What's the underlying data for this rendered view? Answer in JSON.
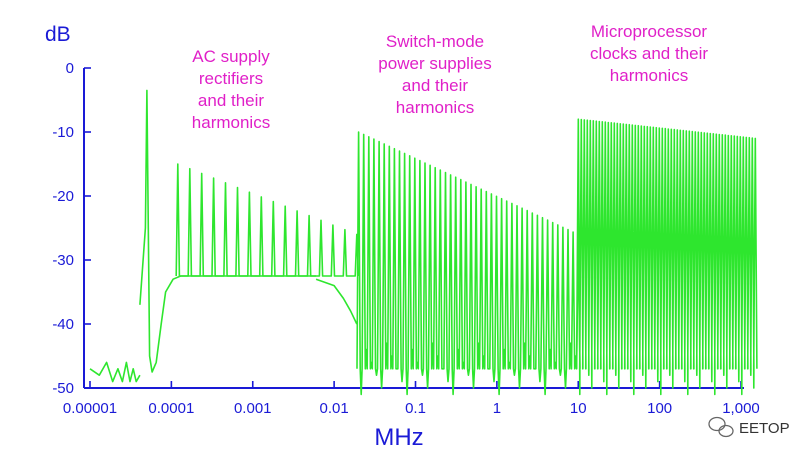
{
  "chart_data": {
    "type": "line",
    "title": "",
    "xlabel": "MHz",
    "ylabel": "dB",
    "xscale": "log",
    "xlim": [
      1e-05,
      1500
    ],
    "ylim": [
      -50,
      0
    ],
    "x_ticks": [
      1e-05,
      0.0001,
      0.001,
      0.01,
      0.1,
      1,
      10,
      100,
      1000
    ],
    "x_tick_labels": [
      "0.00001",
      "0.0001",
      "0.001",
      "0.01",
      "0.1",
      "1",
      "10",
      "100",
      "1,000"
    ],
    "y_ticks": [
      0,
      -10,
      -20,
      -30,
      -40,
      -50
    ],
    "y_tick_labels": [
      "0",
      "-10",
      "-20",
      "-30",
      "-40",
      "-50"
    ],
    "grid": false,
    "annotations": [
      {
        "id": "ac",
        "lines": [
          "AC supply",
          "rectifiers",
          "and their",
          "harmonics"
        ]
      },
      {
        "id": "smps",
        "lines": [
          "Switch-mode",
          "power supplies",
          "and their",
          "harmonics"
        ]
      },
      {
        "id": "mcu",
        "lines": [
          "Microprocessor",
          "clocks and their",
          "harmonics"
        ]
      }
    ],
    "series": [
      {
        "color": "#2ee62e",
        "floor_segments": [
          {
            "x": [
              1e-05,
              1.3e-05,
              1.6e-05,
              1.9e-05,
              2.2e-05,
              2.5e-05,
              2.8e-05,
              3.1e-05,
              3.4e-05,
              3.7e-05,
              4.1e-05
            ],
            "y": [
              -47,
              -48,
              -46,
              -49,
              -47,
              -49,
              -46,
              -49,
              -47,
              -49,
              -48
            ]
          },
          {
            "x": [
              4.1e-05,
              4.8e-05,
              5e-05,
              5.2e-05,
              5.4e-05,
              5.8e-05,
              6.5e-05,
              7.5e-05,
              8.5e-05,
              0.000105,
              0.00013
            ],
            "y": [
              -37,
              -25,
              -3.5,
              -25,
              -45,
              -47.5,
              -46,
              -40,
              -35,
              -33,
              -32.5
            ]
          },
          {
            "x": [
              0.00013,
              0.006
            ],
            "y": [
              -32.5,
              -32.5
            ]
          },
          {
            "x": [
              0.006,
              0.01,
              0.013,
              0.016,
              0.019
            ],
            "y": [
              -33,
              -34,
              -36,
              -38,
              -40
            ]
          }
        ],
        "peak_groups": [
          {
            "f0": 0.00012,
            "f1": 0.019,
            "top_start": -15,
            "top_end": -26,
            "base": -32.5,
            "count": 16
          },
          {
            "f0": 0.02,
            "f1": 10,
            "top_start": -10,
            "top_end": -26,
            "base": -47,
            "count": 44
          },
          {
            "f0": 10,
            "f1": 1500,
            "top_start": -8,
            "top_end": -11,
            "base": -47,
            "count": 60
          }
        ]
      }
    ]
  },
  "watermark": {
    "text": "EETOP",
    "icon": "wechat-icon"
  }
}
